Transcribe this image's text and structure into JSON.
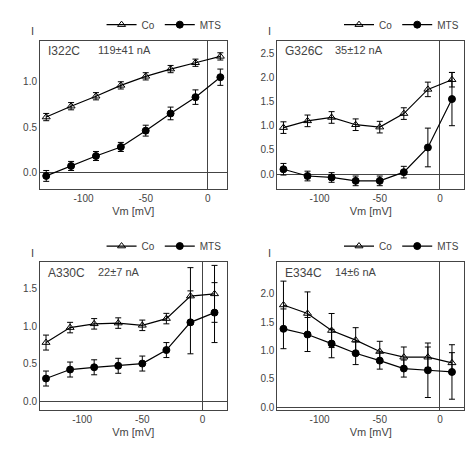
{
  "chart_data": [
    {
      "type": "line",
      "title": "I322C",
      "annotation": "119±41 nA",
      "xlabel": "Vm [mV]",
      "ylabel": "I",
      "x": [
        -130,
        -110,
        -90,
        -70,
        -50,
        -30,
        -10,
        10
      ],
      "series": [
        {
          "name": "Co",
          "color": "black",
          "marker": "triangle-up-open",
          "values": [
            0.61,
            0.73,
            0.84,
            0.96,
            1.06,
            1.14,
            1.21,
            1.28
          ],
          "errors": [
            0.04,
            0.04,
            0.04,
            0.04,
            0.04,
            0.04,
            0.04,
            0.04
          ]
        },
        {
          "name": "MTS",
          "color": "black",
          "marker": "circle",
          "values": [
            -0.04,
            0.07,
            0.18,
            0.28,
            0.46,
            0.65,
            0.83,
            1.05
          ],
          "errors": [
            0.06,
            0.05,
            0.05,
            0.05,
            0.06,
            0.07,
            0.08,
            0.09
          ]
        }
      ],
      "xlim": [
        -135,
        15
      ],
      "ylim": [
        -0.18,
        1.45
      ],
      "xticks": [
        -100,
        -50,
        0
      ],
      "yticks": [
        {
          "value": 0,
          "label": "0.0"
        },
        0.5,
        {
          "value": 1,
          "label": "1.0"
        }
      ],
      "legend": "upper right",
      "grid": false
    },
    {
      "type": "line",
      "title": "G326C",
      "annotation": "35±12 nA",
      "xlabel": "Vm [mV]",
      "ylabel": "I",
      "x": [
        -130,
        -110,
        -90,
        -70,
        -50,
        -30,
        -10,
        10
      ],
      "series": [
        {
          "name": "Co",
          "color": "black",
          "marker": "triangle-up-open",
          "values": [
            0.96,
            1.1,
            1.17,
            1.02,
            0.97,
            1.25,
            1.75,
            1.95
          ],
          "errors": [
            0.12,
            0.12,
            0.12,
            0.12,
            0.12,
            0.12,
            0.15,
            0.15
          ]
        },
        {
          "name": "MTS",
          "color": "black",
          "marker": "circle",
          "values": [
            0.1,
            -0.04,
            -0.07,
            -0.14,
            -0.14,
            0.04,
            0.55,
            1.55
          ],
          "errors": [
            0.12,
            0.1,
            0.1,
            0.1,
            0.1,
            0.12,
            0.4,
            0.55
          ]
        }
      ],
      "xlim": [
        -135,
        20
      ],
      "ylim": [
        -0.3,
        2.75
      ],
      "xticks": [
        -100,
        -50,
        0
      ],
      "yticks": [
        {
          "value": 0,
          "label": "0.0"
        },
        0.5,
        {
          "value": 1,
          "label": "1.0"
        },
        1.5,
        {
          "value": 2,
          "label": "2.0"
        },
        2.5
      ],
      "legend": "upper right",
      "grid": false
    },
    {
      "type": "line",
      "title": "A330C",
      "annotation": "22±7 nA",
      "xlabel": "Vm [mV]",
      "ylabel": "I",
      "x": [
        -130,
        -110,
        -90,
        -70,
        -50,
        -30,
        -10,
        10
      ],
      "series": [
        {
          "name": "Co",
          "color": "black",
          "marker": "triangle-up-open",
          "values": [
            0.78,
            0.98,
            1.03,
            1.04,
            1.01,
            1.1,
            1.4,
            1.43
          ],
          "errors": [
            0.1,
            0.07,
            0.07,
            0.07,
            0.07,
            0.07,
            0.38,
            0.38
          ]
        },
        {
          "name": "MTS",
          "color": "black",
          "marker": "circle",
          "values": [
            0.3,
            0.42,
            0.45,
            0.47,
            0.5,
            0.68,
            1.05,
            1.18
          ],
          "errors": [
            0.1,
            0.1,
            0.1,
            0.1,
            0.1,
            0.1,
            0.42,
            0.4
          ]
        }
      ],
      "xlim": [
        -135,
        20
      ],
      "ylim": [
        -0.12,
        1.85
      ],
      "xticks": [
        -100,
        -50,
        0
      ],
      "yticks": [
        {
          "value": 0,
          "label": "0.0"
        },
        0.5,
        {
          "value": 1,
          "label": "1.0"
        },
        1.5
      ],
      "legend": "upper right",
      "grid": false
    },
    {
      "type": "line",
      "title": "E334C",
      "annotation": "14±6 nA",
      "xlabel": "Vm [mV]",
      "ylabel": "I",
      "x": [
        -130,
        -110,
        -90,
        -70,
        -50,
        -30,
        -10,
        10
      ],
      "series": [
        {
          "name": "Co",
          "color": "black",
          "marker": "triangle-up-open",
          "values": [
            1.8,
            1.65,
            1.35,
            1.18,
            0.98,
            0.88,
            0.88,
            0.78
          ],
          "errors": [
            0.42,
            0.38,
            0.3,
            0.22,
            0.18,
            0.18,
            0.18,
            0.18
          ]
        },
        {
          "name": "MTS",
          "color": "black",
          "marker": "circle",
          "values": [
            1.38,
            1.28,
            1.12,
            0.95,
            0.82,
            0.68,
            0.65,
            0.62
          ],
          "errors": [
            0.35,
            0.3,
            0.25,
            0.2,
            0.15,
            0.15,
            0.48,
            0.48
          ]
        }
      ],
      "xlim": [
        -135,
        20
      ],
      "ylim": [
        -0.05,
        2.55
      ],
      "xticks": [
        -100,
        -50,
        0
      ],
      "yticks": [
        {
          "value": 0,
          "label": "0.0"
        },
        0.5,
        {
          "value": 1,
          "label": "1.0"
        },
        1.5,
        {
          "value": 2,
          "label": "2.0"
        }
      ],
      "legend": "upper right",
      "grid": false
    }
  ]
}
